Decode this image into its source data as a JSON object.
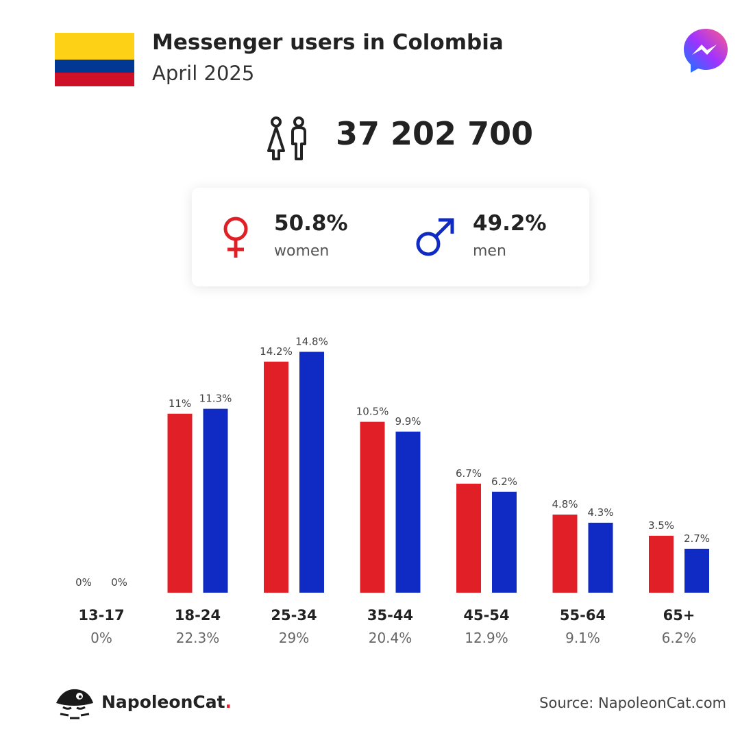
{
  "header": {
    "title": "Messenger users in Colombia",
    "subtitle": "April 2025"
  },
  "flag": {
    "colors": [
      "#FCD116",
      "#003893",
      "#CE1126"
    ]
  },
  "total_users": "37 202 700",
  "gender": {
    "women": {
      "pct": "50.8%",
      "label": "women",
      "color": "#E01F26"
    },
    "men": {
      "pct": "49.2%",
      "label": "men",
      "color": "#0F2BC4"
    }
  },
  "chart_data": {
    "type": "bar",
    "categories": [
      "13-17",
      "18-24",
      "25-34",
      "35-44",
      "45-54",
      "55-64",
      "65+"
    ],
    "category_totals": [
      "0%",
      "22.3%",
      "29%",
      "20.4%",
      "12.9%",
      "9.1%",
      "6.2%"
    ],
    "series": [
      {
        "name": "women",
        "color": "#E01F26",
        "values": [
          0,
          11,
          14.2,
          10.5,
          6.7,
          4.8,
          3.5
        ],
        "labels": [
          "0%",
          "11%",
          "14.2%",
          "10.5%",
          "6.7%",
          "4.8%",
          "3.5%"
        ]
      },
      {
        "name": "men",
        "color": "#0F2BC4",
        "values": [
          0,
          11.3,
          14.8,
          9.9,
          6.2,
          4.3,
          2.7
        ],
        "labels": [
          "0%",
          "11.3%",
          "14.8%",
          "9.9%",
          "6.2%",
          "4.3%",
          "2.7%"
        ]
      }
    ],
    "ylim": [
      0,
      15
    ]
  },
  "footer": {
    "brand": "NapoleonCat",
    "brand_suffix": ".",
    "source": "Source: NapoleonCat.com"
  }
}
